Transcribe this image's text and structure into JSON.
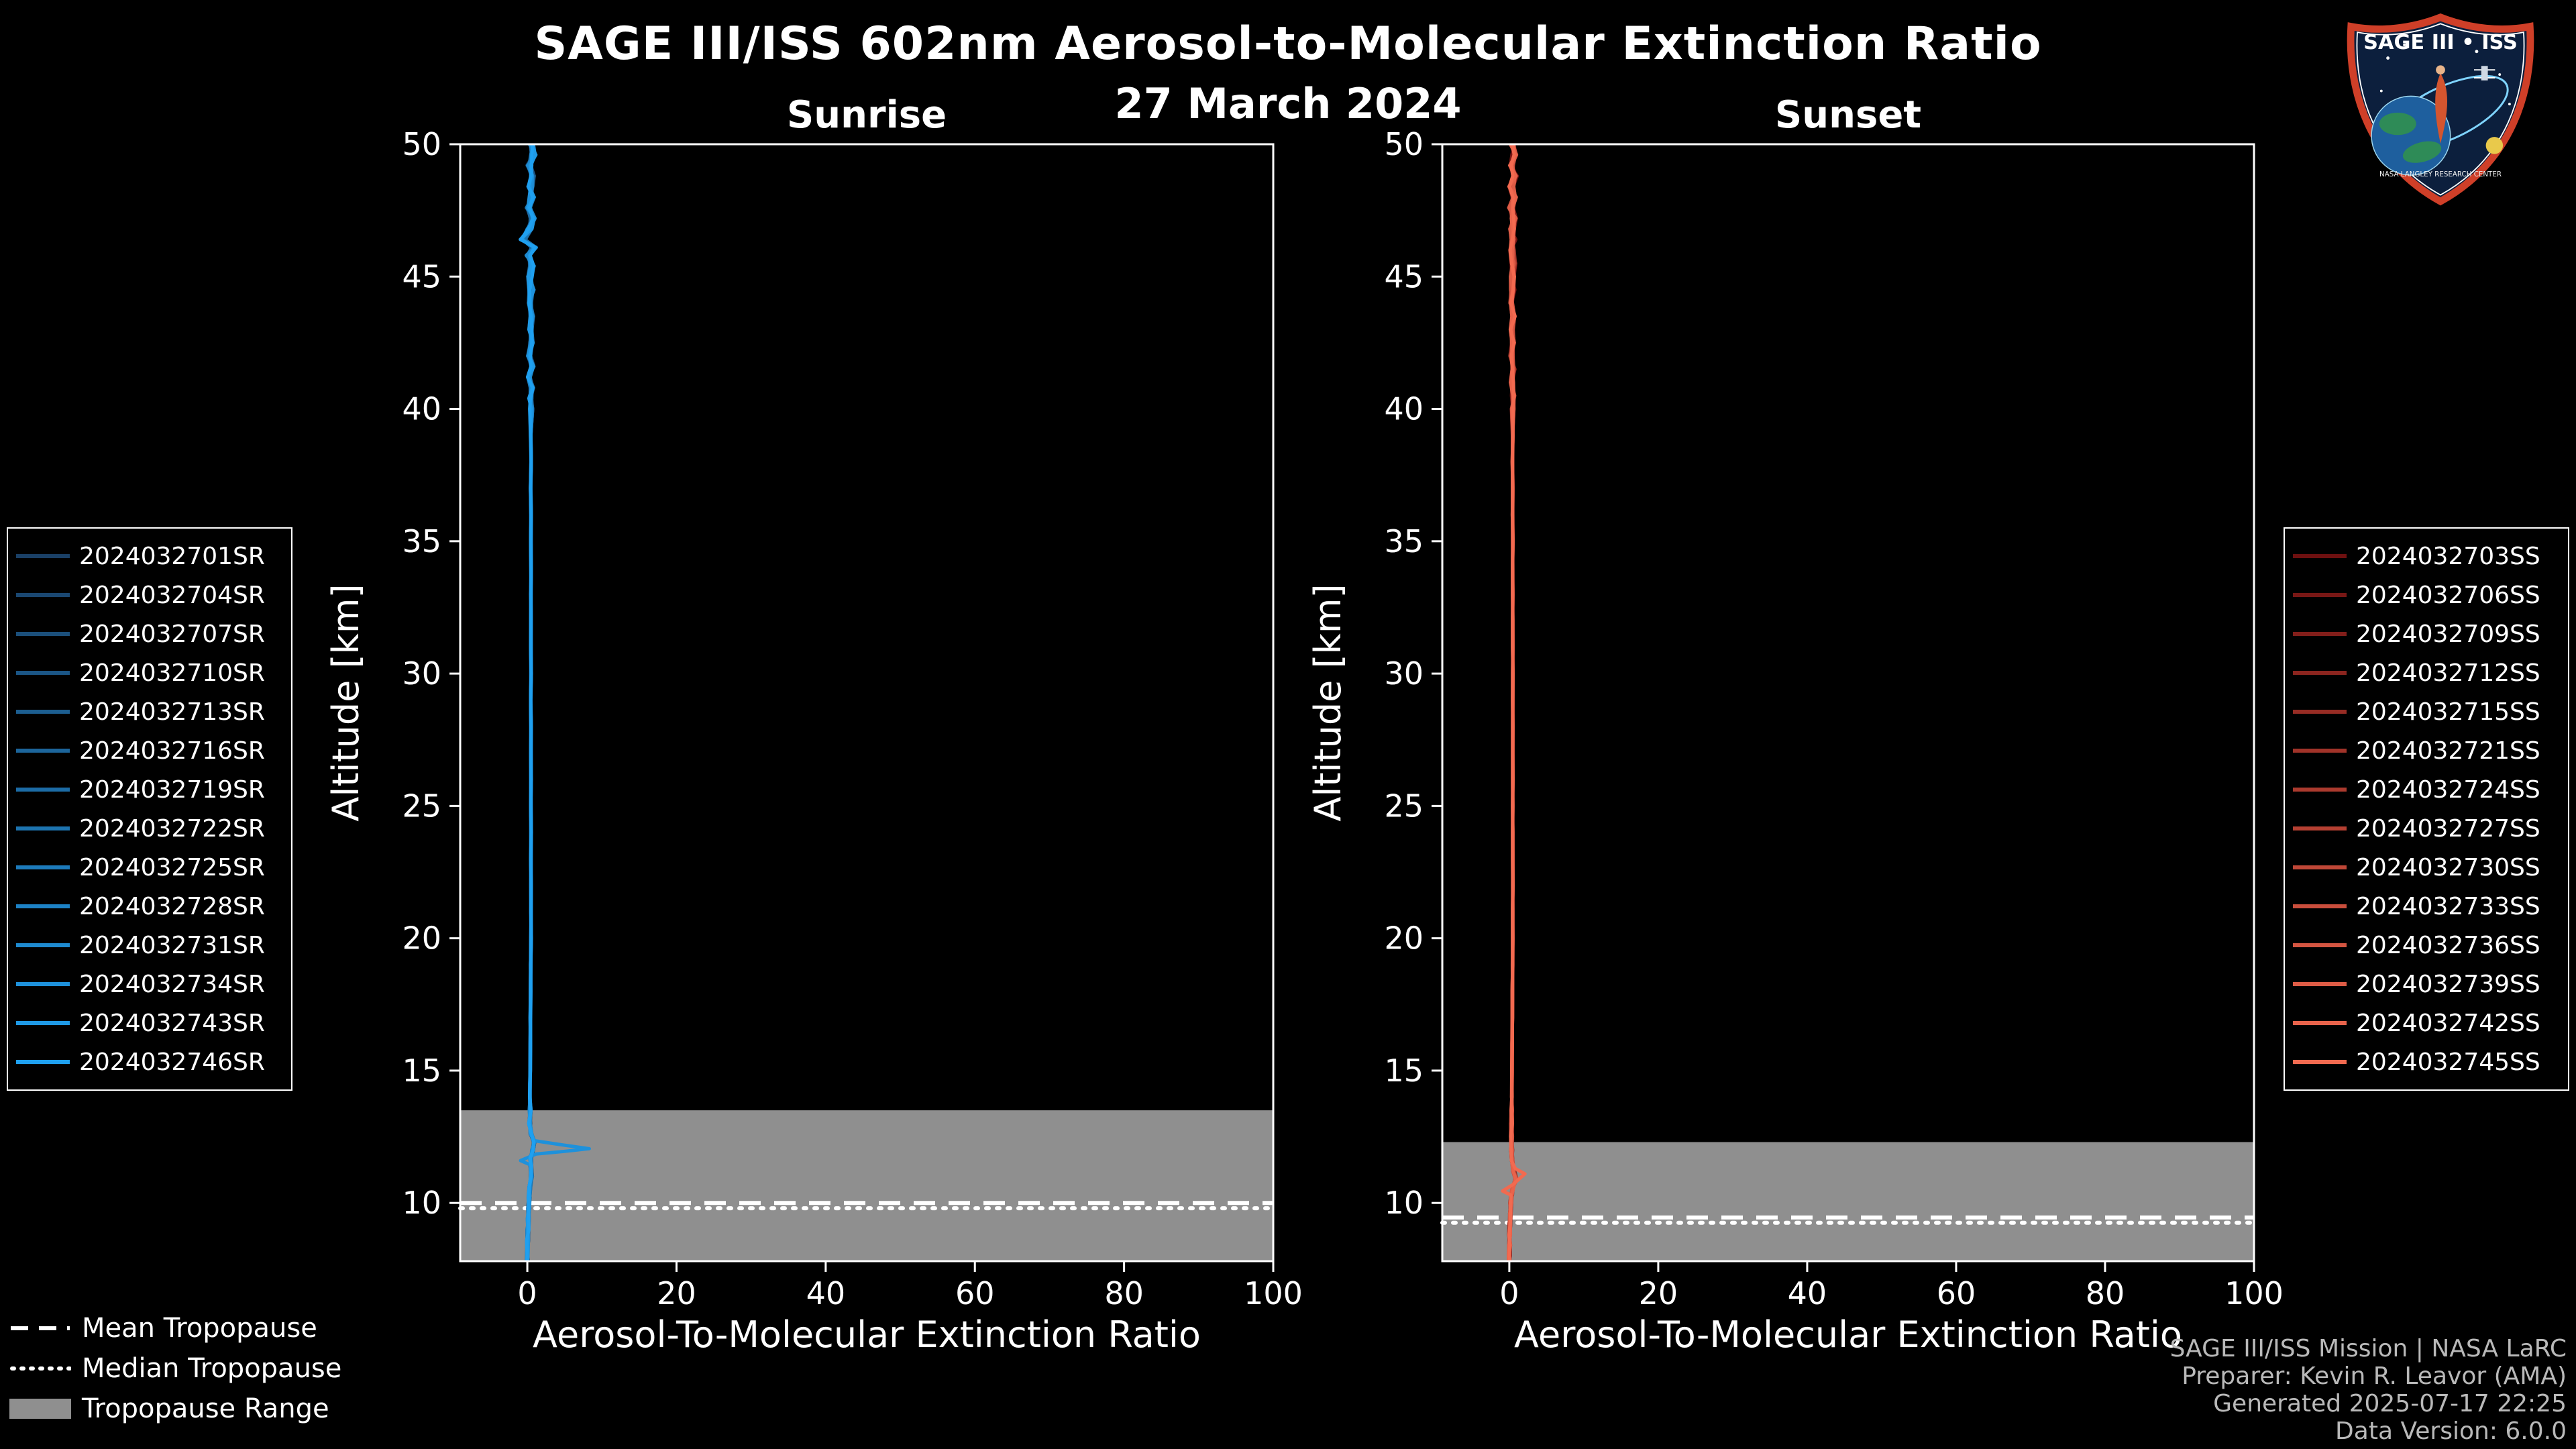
{
  "title": "SAGE III/ISS 602nm Aerosol-to-Molecular Extinction Ratio",
  "date": "27 March 2024",
  "colors": {
    "background": "#000000",
    "foreground": "#ffffff",
    "tropopause_band": "#8f8f8f",
    "credits_text": "#b9b9b9",
    "sunrise_dark": "#1a4066",
    "sunrise_bright": "#1fa0f0",
    "sunset_dark": "#6e1010",
    "sunset_bright": "#f26a50",
    "logo_border": "#cf3f28",
    "logo_navy": "#0c1f3d"
  },
  "chart_data": [
    {
      "type": "line",
      "title": "Sunrise",
      "xlabel": "Aerosol-To-Molecular Extinction Ratio",
      "ylabel": "Altitude [km]",
      "xlim": [
        -9,
        100
      ],
      "ylim": [
        7.8,
        50
      ],
      "xticks": [
        0,
        20,
        40,
        60,
        80,
        100
      ],
      "yticks": [
        10,
        15,
        20,
        25,
        30,
        35,
        40,
        45,
        50
      ],
      "grid": false,
      "legend_position": "outside-left",
      "series": [
        "2024032701SR",
        "2024032704SR",
        "2024032707SR",
        "2024032710SR",
        "2024032713SR",
        "2024032716SR",
        "2024032719SR",
        "2024032722SR",
        "2024032725SR",
        "2024032728SR",
        "2024032731SR",
        "2024032734SR",
        "2024032743SR",
        "2024032746SR"
      ],
      "color_start": "#1a4066",
      "color_end": "#1fa0f0",
      "tropopause": {
        "range_top_km": 13.5,
        "range_bottom_km": 7.8,
        "mean_km": 10.0,
        "median_km": 9.8
      },
      "profile": [
        [
          50,
          0.5
        ],
        [
          49.6,
          0.8
        ],
        [
          49.2,
          0.3
        ],
        [
          48.8,
          0.7
        ],
        [
          48.4,
          0.4
        ],
        [
          48,
          0.6
        ],
        [
          47.6,
          0.2
        ],
        [
          47.2,
          0.7
        ],
        [
          46.8,
          0.3
        ],
        [
          46.4,
          -0.6
        ],
        [
          46.1,
          0.9
        ],
        [
          45.8,
          0.1
        ],
        [
          45.4,
          0.6
        ],
        [
          45,
          0.4
        ],
        [
          44.5,
          0.55
        ],
        [
          44,
          0.35
        ],
        [
          43.5,
          0.6
        ],
        [
          43,
          0.4
        ],
        [
          42.5,
          0.55
        ],
        [
          42,
          0.25
        ],
        [
          41.6,
          0.7
        ],
        [
          41.2,
          0.2
        ],
        [
          40.8,
          0.6
        ],
        [
          40.4,
          0.4
        ],
        [
          40,
          0.5
        ],
        [
          39,
          0.45
        ],
        [
          38,
          0.5
        ],
        [
          37,
          0.45
        ],
        [
          36,
          0.5
        ],
        [
          35,
          0.48
        ],
        [
          34,
          0.5
        ],
        [
          33,
          0.46
        ],
        [
          32,
          0.5
        ],
        [
          31,
          0.48
        ],
        [
          30,
          0.5
        ],
        [
          29,
          0.47
        ],
        [
          28,
          0.5
        ],
        [
          27,
          0.48
        ],
        [
          26,
          0.5
        ],
        [
          25,
          0.48
        ],
        [
          24,
          0.5
        ],
        [
          23,
          0.48
        ],
        [
          22,
          0.5
        ],
        [
          21,
          0.48
        ],
        [
          20,
          0.5
        ],
        [
          19,
          0.46
        ],
        [
          18,
          0.44
        ],
        [
          17,
          0.42
        ],
        [
          16,
          0.4
        ],
        [
          15,
          0.38
        ],
        [
          14.5,
          0.36
        ],
        [
          14,
          0.34
        ],
        [
          13.5,
          0.38
        ],
        [
          13,
          0.3
        ],
        [
          12.6,
          0.5
        ],
        [
          12.3,
          0.9
        ],
        [
          12,
          0.7
        ],
        [
          11.7,
          0.45
        ],
        [
          11.4,
          0.5
        ],
        [
          11,
          0.55
        ],
        [
          10.6,
          0.35
        ],
        [
          10.2,
          0.25
        ],
        [
          9.8,
          0.2
        ],
        [
          9.4,
          0.12
        ],
        [
          9,
          0.08
        ],
        [
          8.6,
          0.05
        ],
        [
          8.2,
          0.02
        ],
        [
          7.8,
          0
        ]
      ],
      "spike": {
        "series": "2024032734SR",
        "points": [
          [
            12.35,
            1.0
          ],
          [
            12.2,
            4.5
          ],
          [
            12.05,
            8.3
          ],
          [
            11.95,
            5.0
          ],
          [
            11.85,
            1.2
          ],
          [
            11.6,
            -0.9
          ],
          [
            11.45,
            0.3
          ]
        ]
      }
    },
    {
      "type": "line",
      "title": "Sunset",
      "xlabel": "Aerosol-To-Molecular Extinction Ratio",
      "ylabel": "Altitude [km]",
      "xlim": [
        -9,
        100
      ],
      "ylim": [
        7.8,
        50
      ],
      "xticks": [
        0,
        20,
        40,
        60,
        80,
        100
      ],
      "yticks": [
        10,
        15,
        20,
        25,
        30,
        35,
        40,
        45,
        50
      ],
      "grid": false,
      "legend_position": "outside-right",
      "series": [
        "2024032703SS",
        "2024032706SS",
        "2024032709SS",
        "2024032712SS",
        "2024032715SS",
        "2024032721SS",
        "2024032724SS",
        "2024032727SS",
        "2024032730SS",
        "2024032733SS",
        "2024032736SS",
        "2024032739SS",
        "2024032742SS",
        "2024032745SS"
      ],
      "color_start": "#6e1010",
      "color_end": "#f26a50",
      "tropopause": {
        "range_top_km": 12.3,
        "range_bottom_km": 7.8,
        "mean_km": 9.45,
        "median_km": 9.25
      },
      "profile": [
        [
          50,
          0.4
        ],
        [
          49.6,
          0.7
        ],
        [
          49.2,
          0.2
        ],
        [
          48.8,
          0.8
        ],
        [
          48.4,
          0.3
        ],
        [
          48,
          0.65
        ],
        [
          47.6,
          0.25
        ],
        [
          47.2,
          0.6
        ],
        [
          46.8,
          0.35
        ],
        [
          46.4,
          0.6
        ],
        [
          46,
          0.3
        ],
        [
          45.5,
          0.55
        ],
        [
          45,
          0.35
        ],
        [
          44.5,
          0.5
        ],
        [
          44,
          0.3
        ],
        [
          43.5,
          0.55
        ],
        [
          43,
          0.35
        ],
        [
          42.5,
          0.5
        ],
        [
          42,
          0.3
        ],
        [
          41.5,
          0.55
        ],
        [
          41,
          0.35
        ],
        [
          40.5,
          0.5
        ],
        [
          40,
          0.4
        ],
        [
          39,
          0.45
        ],
        [
          38,
          0.42
        ],
        [
          37,
          0.46
        ],
        [
          36,
          0.44
        ],
        [
          35,
          0.46
        ],
        [
          34,
          0.44
        ],
        [
          33,
          0.46
        ],
        [
          32,
          0.44
        ],
        [
          31,
          0.46
        ],
        [
          30,
          0.46
        ],
        [
          29,
          0.45
        ],
        [
          28,
          0.46
        ],
        [
          27,
          0.45
        ],
        [
          26,
          0.46
        ],
        [
          25,
          0.45
        ],
        [
          24,
          0.46
        ],
        [
          23,
          0.45
        ],
        [
          22,
          0.46
        ],
        [
          21,
          0.45
        ],
        [
          20,
          0.45
        ],
        [
          19,
          0.44
        ],
        [
          18,
          0.42
        ],
        [
          17,
          0.4
        ],
        [
          16,
          0.38
        ],
        [
          15,
          0.36
        ],
        [
          14,
          0.34
        ],
        [
          13.5,
          0.32
        ],
        [
          13,
          0.3
        ],
        [
          12.5,
          0.3
        ],
        [
          12,
          0.32
        ],
        [
          11.6,
          0.4
        ],
        [
          11.2,
          0.6
        ],
        [
          10.9,
          0.9
        ],
        [
          10.6,
          0.5
        ],
        [
          10.3,
          0.3
        ],
        [
          10,
          0.2
        ],
        [
          9.6,
          0.12
        ],
        [
          9.2,
          0.08
        ],
        [
          8.8,
          0.04
        ],
        [
          8.4,
          0.02
        ],
        [
          8,
          0.01
        ],
        [
          7.8,
          0
        ]
      ],
      "spike": {
        "series": "2024032745SS",
        "points": [
          [
            11.3,
            0.8
          ],
          [
            11.1,
            2.1
          ],
          [
            10.9,
            1.3
          ],
          [
            10.7,
            0.5
          ],
          [
            10.45,
            -0.9
          ],
          [
            10.3,
            0.2
          ]
        ]
      }
    }
  ],
  "tropopause_legend": {
    "mean": "Mean Tropopause",
    "median": "Median Tropopause",
    "range": "Tropopause Range"
  },
  "credits": {
    "mission": "SAGE III/ISS Mission | NASA LaRC",
    "preparer": "Preparer: Kevin R. Leavor (AMA)",
    "generated": "Generated 2025-07-17 22:25",
    "version": "Data Version: 6.0.0"
  },
  "logo": {
    "title": "SAGE III • ISS",
    "subtitle": "NASA LANGLEY RESEARCH CENTER"
  }
}
